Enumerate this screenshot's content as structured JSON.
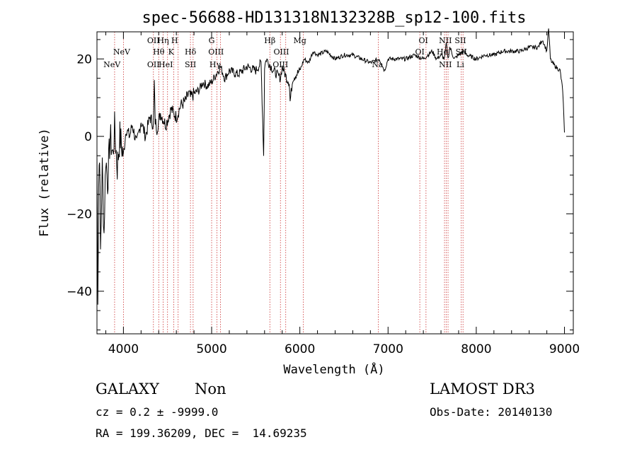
{
  "chart_data": {
    "type": "line",
    "title": "spec-56688-HD131318N132328B_sp12-100.fits",
    "xlabel": "Wavelength (Å)",
    "ylabel": "Flux (relative)",
    "xlim": [
      3700,
      9100
    ],
    "ylim": [
      -51,
      27
    ],
    "xticks": [
      4000,
      5000,
      6000,
      7000,
      8000,
      9000
    ],
    "yticks": [
      -40,
      -20,
      0,
      20
    ],
    "series": [
      {
        "name": "spectrum",
        "x": [
          3700,
          3710,
          3720,
          3730,
          3740,
          3760,
          3780,
          3800,
          3820,
          3850,
          3880,
          3900,
          3930,
          3960,
          4000,
          4030,
          4070,
          4100,
          4150,
          4200,
          4250,
          4300,
          4340,
          4350,
          4360,
          4380,
          4420,
          4480,
          4540,
          4600,
          4650,
          4700,
          4740,
          4760,
          4800,
          4860,
          4900,
          4950,
          5000,
          5050,
          5100,
          5150,
          5200,
          5300,
          5400,
          5500,
          5560,
          5590,
          5600,
          5620,
          5700,
          5780,
          5800,
          5850,
          5880,
          5890,
          5920,
          6000,
          6050,
          6100,
          6150,
          6200,
          6300,
          6400,
          6500,
          6600,
          6700,
          6800,
          6900,
          6960,
          7000,
          7100,
          7200,
          7300,
          7400,
          7500,
          7550,
          7600,
          7640,
          7660,
          7680,
          7700,
          7750,
          7800,
          7850,
          7900,
          8000,
          8100,
          8200,
          8300,
          8400,
          8500,
          8600,
          8700,
          8750,
          8800,
          8820,
          8840,
          8860,
          8900,
          8950,
          8980,
          9000
        ],
        "y": [
          -5,
          -40,
          -12,
          -3,
          -30,
          -8,
          -25,
          -5,
          -12,
          0,
          -5,
          2,
          -8,
          0,
          -5,
          2,
          0,
          3,
          -2,
          4,
          0,
          5,
          3,
          14,
          4,
          2,
          6,
          3,
          7,
          5,
          8,
          9,
          11,
          10,
          11,
          12,
          14,
          13,
          14,
          16,
          18,
          15,
          17,
          16,
          18,
          17,
          19,
          -5,
          18,
          20,
          17,
          15,
          18,
          15,
          14,
          9,
          15,
          17,
          20,
          19,
          22,
          21,
          22,
          20,
          21,
          21,
          20,
          19,
          20,
          17,
          20,
          20,
          20,
          21,
          20,
          22,
          20,
          21,
          20,
          24,
          20,
          23,
          20,
          21,
          22,
          21,
          20,
          21,
          21,
          22,
          22,
          22,
          23,
          23,
          25,
          22,
          28,
          20,
          19,
          18,
          17,
          12,
          1
        ]
      }
    ],
    "lines": [
      {
        "x": 3870,
        "label": "NeV",
        "row": 3
      },
      {
        "x": 3980,
        "label": "NeV",
        "row": 2
      },
      {
        "x": 4340,
        "label": "OII",
        "row": 3
      },
      {
        "x": 4340,
        "label": "OII",
        "row": 1
      },
      {
        "x": 4400,
        "label": "Hθ",
        "row": 2
      },
      {
        "x": 4450,
        "label": "Hη",
        "row": 1
      },
      {
        "x": 4480,
        "label": "HeI",
        "row": 3
      },
      {
        "x": 4540,
        "label": "K",
        "row": 2
      },
      {
        "x": 4580,
        "label": "H",
        "row": 1
      },
      {
        "x": 4760,
        "label": "Hδ",
        "row": 2
      },
      {
        "x": 4760,
        "label": "SII",
        "row": 3
      },
      {
        "x": 5000,
        "label": "G",
        "row": 1
      },
      {
        "x": 5050,
        "label": "OIII",
        "row": 2
      },
      {
        "x": 5040,
        "label": "Hγ",
        "row": 3
      },
      {
        "x": 5660,
        "label": "Hβ",
        "row": 1
      },
      {
        "x": 5790,
        "label": "OIII",
        "row": 2
      },
      {
        "x": 5780,
        "label": "OIII",
        "row": 3
      },
      {
        "x": 6000,
        "label": "Mg",
        "row": 1
      },
      {
        "x": 6880,
        "label": "Na",
        "row": 3
      },
      {
        "x": 7400,
        "label": "OI",
        "row": 1
      },
      {
        "x": 7360,
        "label": "OI",
        "row": 2
      },
      {
        "x": 7650,
        "label": "NII",
        "row": 1
      },
      {
        "x": 7620,
        "label": "Hα",
        "row": 2
      },
      {
        "x": 7650,
        "label": "NII",
        "row": 3
      },
      {
        "x": 7820,
        "label": "SII",
        "row": 1
      },
      {
        "x": 7830,
        "label": "SII",
        "row": 2
      },
      {
        "x": 7820,
        "label": "Li",
        "row": 3
      }
    ],
    "line_x_positions": [
      3900,
      4000,
      4340,
      4400,
      4450,
      4500,
      4570,
      4620,
      4760,
      4790,
      5000,
      5060,
      5100,
      5660,
      5780,
      5840,
      6040,
      6890,
      7360,
      7430,
      7640,
      7660,
      7680,
      7830,
      7850
    ]
  },
  "info": {
    "class_text": "GALAXY",
    "subclass_text": "Non",
    "cz_text": "cz = 0.2 ± -9999.0",
    "radec_text": "RA = 199.36209, DEC =  14.69235",
    "survey_text": "LAMOST DR3",
    "obsdate_text": "Obs-Date: 20140130"
  },
  "colors": {
    "spectrum": "#000000",
    "line_marker": "#cc3333",
    "axis": "#000000"
  }
}
